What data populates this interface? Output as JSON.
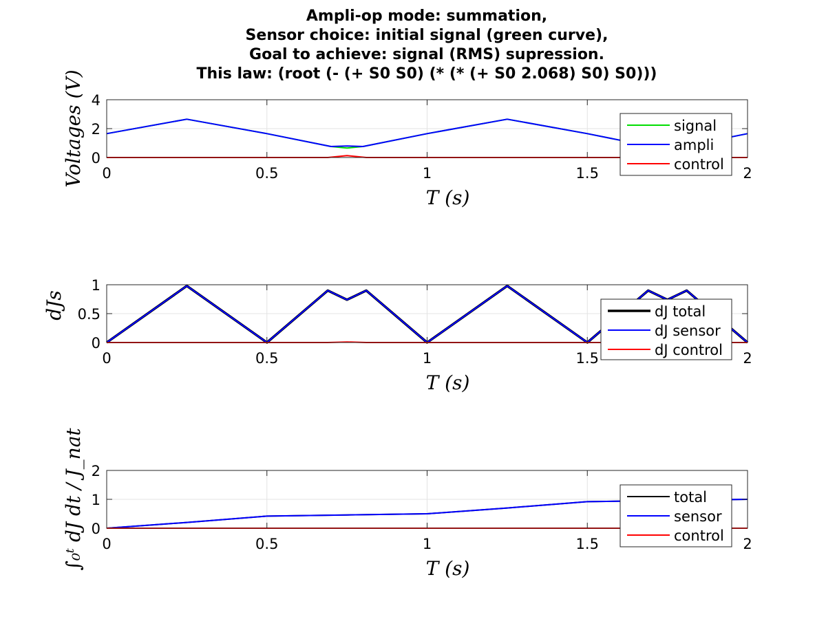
{
  "title_lines": [
    "Ampli-op mode: summation,",
    "Sensor choice: initial signal (green curve),",
    "Goal to achieve: signal (RMS) supression.",
    "This law: (root (- (+ S0 S0) (* (* (+ S0 2.068) S0) S0)))"
  ],
  "colors": {
    "signal": "#00dd00",
    "ampli": "#0000ff",
    "control": "#ff0000",
    "total": "#000000",
    "sensor": "#0000ff"
  },
  "chart_data": [
    {
      "type": "line",
      "ylabel": "Voltages (V)",
      "xlabel": "T (s)",
      "xlim": [
        0,
        2
      ],
      "ylim": [
        0,
        4
      ],
      "xticks": [
        0,
        0.5,
        1,
        1.5,
        2
      ],
      "xtick_labels": [
        "0",
        "0.5",
        "1",
        "1.5",
        "2"
      ],
      "yticks": [
        0,
        2,
        4
      ],
      "ytick_labels": [
        "0",
        "2",
        "4"
      ],
      "grid": true,
      "legend_position": "right",
      "series": [
        {
          "name": "signal",
          "color": "#00dd00",
          "x": [
            0,
            0.25,
            0.5,
            0.7,
            0.75,
            0.8,
            1.0,
            1.25,
            1.5,
            1.7,
            1.75,
            1.8,
            2.0
          ],
          "y": [
            1.65,
            2.65,
            1.65,
            0.76,
            0.65,
            0.76,
            1.65,
            2.65,
            1.65,
            0.76,
            0.65,
            0.76,
            1.65
          ]
        },
        {
          "name": "ampli",
          "color": "#0000ff",
          "x": [
            0,
            0.25,
            0.5,
            0.7,
            0.75,
            0.8,
            1.0,
            1.25,
            1.5,
            1.7,
            1.75,
            1.8,
            2.0
          ],
          "y": [
            1.65,
            2.65,
            1.65,
            0.76,
            0.8,
            0.76,
            1.65,
            2.65,
            1.65,
            0.76,
            0.8,
            0.76,
            1.65
          ]
        },
        {
          "name": "control",
          "color": "#ff0000",
          "x": [
            0,
            0.69,
            0.75,
            0.81,
            1.69,
            1.75,
            1.81,
            2.0
          ],
          "y": [
            0,
            0,
            0.13,
            0,
            0,
            0.13,
            0,
            0
          ]
        }
      ]
    },
    {
      "type": "line",
      "ylabel": "dJs",
      "xlabel": "T (s)",
      "xlim": [
        0,
        2
      ],
      "ylim": [
        0,
        1
      ],
      "xticks": [
        0,
        0.5,
        1,
        1.5,
        2
      ],
      "xtick_labels": [
        "0",
        "0.5",
        "1",
        "1.5",
        "2"
      ],
      "yticks": [
        0,
        0.5,
        1
      ],
      "ytick_labels": [
        "0",
        "0.5",
        "1"
      ],
      "grid": true,
      "legend_position": "right",
      "series": [
        {
          "name": "dJ total",
          "color": "#000000",
          "x": [
            0,
            0.25,
            0.5,
            0.69,
            0.75,
            0.81,
            1.0,
            1.25,
            1.5,
            1.69,
            1.75,
            1.81,
            2.0
          ],
          "y": [
            0,
            0.98,
            0,
            0.9,
            0.74,
            0.9,
            0,
            0.98,
            0,
            0.9,
            0.74,
            0.9,
            0
          ]
        },
        {
          "name": "dJ sensor",
          "color": "#0000ff",
          "x": [
            0,
            0.25,
            0.5,
            0.69,
            0.75,
            0.81,
            1.0,
            1.25,
            1.5,
            1.69,
            1.75,
            1.81,
            2.0
          ],
          "y": [
            0,
            0.98,
            0,
            0.9,
            0.74,
            0.9,
            0,
            0.98,
            0,
            0.9,
            0.74,
            0.9,
            0
          ]
        },
        {
          "name": "dJ control",
          "color": "#ff0000",
          "x": [
            0,
            0.69,
            0.75,
            0.81,
            1.69,
            1.75,
            1.81,
            2.0
          ],
          "y": [
            0,
            0,
            0.01,
            0,
            0,
            0.01,
            0,
            0
          ]
        }
      ]
    },
    {
      "type": "line",
      "ylabel": "∫₀ᵗ dJ dt / J_nat",
      "xlabel": "T (s)",
      "xlim": [
        0,
        2
      ],
      "ylim": [
        0,
        2
      ],
      "xticks": [
        0,
        0.5,
        1,
        1.5,
        2
      ],
      "xtick_labels": [
        "0",
        "0.5",
        "1",
        "1.5",
        "2"
      ],
      "yticks": [
        0,
        1,
        2
      ],
      "ytick_labels": [
        "0",
        "1",
        "2"
      ],
      "grid": true,
      "legend_position": "right",
      "series": [
        {
          "name": "total",
          "color": "#000000",
          "x": [
            0,
            0.25,
            0.5,
            0.75,
            1.0,
            1.25,
            1.5,
            1.75,
            2.0
          ],
          "y": [
            0,
            0.2,
            0.42,
            0.46,
            0.5,
            0.7,
            0.92,
            0.96,
            1.0
          ]
        },
        {
          "name": "sensor",
          "color": "#0000ff",
          "x": [
            0,
            0.25,
            0.5,
            0.75,
            1.0,
            1.25,
            1.5,
            1.75,
            2.0
          ],
          "y": [
            0,
            0.2,
            0.42,
            0.46,
            0.5,
            0.7,
            0.92,
            0.96,
            1.0
          ]
        },
        {
          "name": "control",
          "color": "#ff0000",
          "x": [
            0,
            2.0
          ],
          "y": [
            0,
            0
          ]
        }
      ]
    }
  ]
}
